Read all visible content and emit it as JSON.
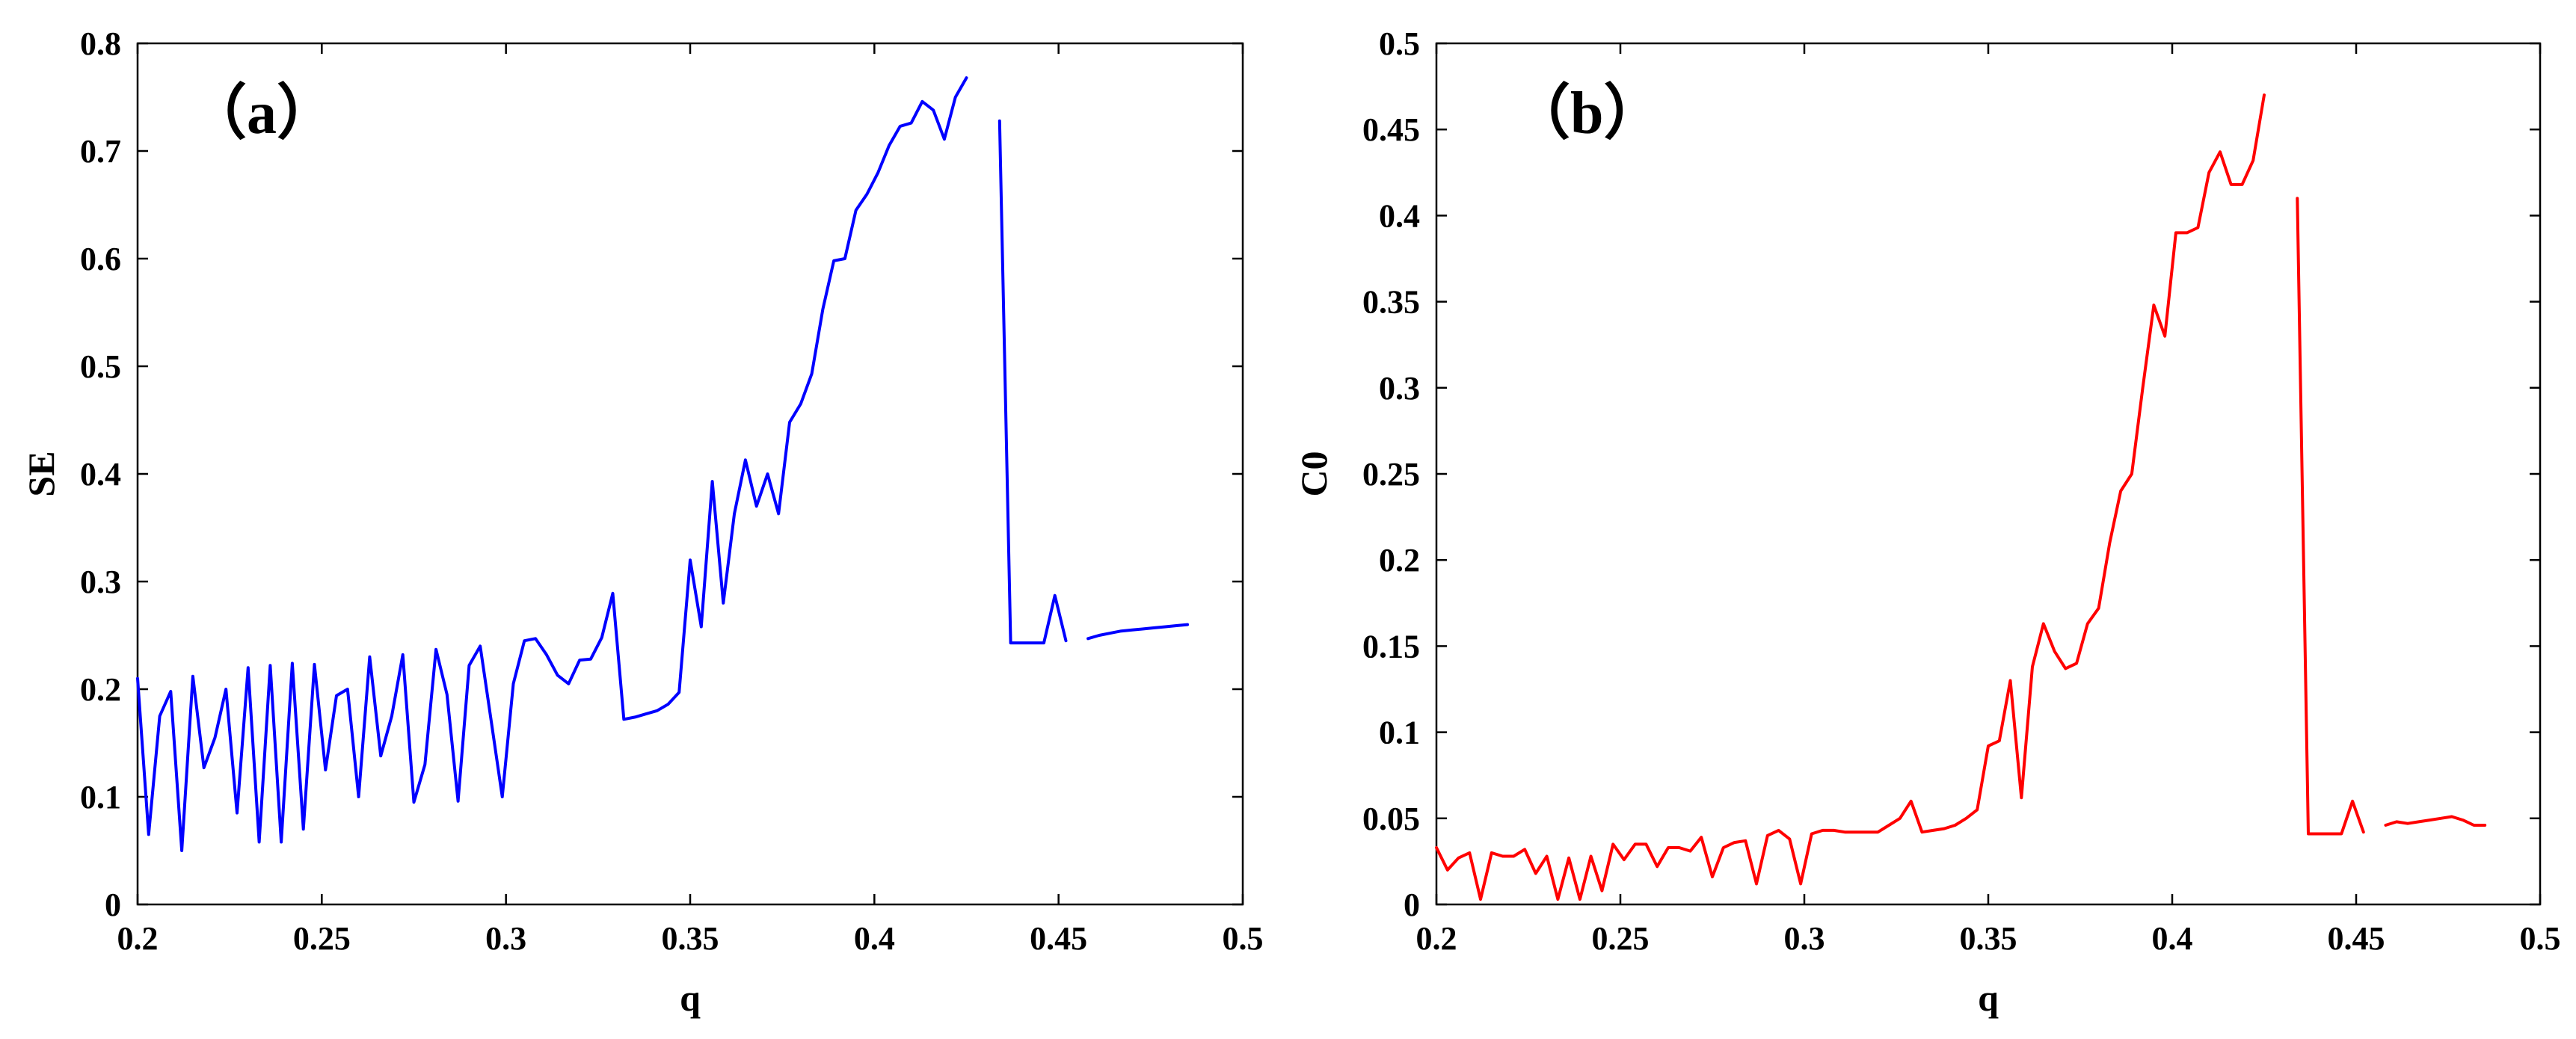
{
  "chart_data": [
    {
      "type": "line",
      "panel_label": "（a）",
      "xlabel": "q",
      "ylabel": "SE",
      "xlim": [
        0.2,
        0.5
      ],
      "ylim": [
        0,
        0.8
      ],
      "xticks": [
        "0.2",
        "0.25",
        "0.3",
        "0.35",
        "0.4",
        "0.45",
        "0.5"
      ],
      "yticks": [
        "0",
        "0.1",
        "0.2",
        "0.3",
        "0.4",
        "0.5",
        "0.6",
        "0.7",
        "0.8"
      ],
      "grid": false,
      "color": "#0000ff",
      "segments": [
        {
          "x": [
            0.2,
            0.203,
            0.206,
            0.209,
            0.212,
            0.215,
            0.218,
            0.221,
            0.224,
            0.227,
            0.23,
            0.233,
            0.236,
            0.239,
            0.242,
            0.245,
            0.248,
            0.251,
            0.254,
            0.257,
            0.26,
            0.263,
            0.266,
            0.269,
            0.272,
            0.275,
            0.278,
            0.281,
            0.284,
            0.287,
            0.29,
            0.293,
            0.296,
            0.299,
            0.302,
            0.305,
            0.308,
            0.311,
            0.314,
            0.317,
            0.32,
            0.323,
            0.326,
            0.329,
            0.332,
            0.335,
            0.338,
            0.341,
            0.344,
            0.347,
            0.35,
            0.353,
            0.356,
            0.359,
            0.362,
            0.365,
            0.368,
            0.371,
            0.374,
            0.377,
            0.38,
            0.383,
            0.386,
            0.389,
            0.392,
            0.395,
            0.398,
            0.401,
            0.404,
            0.407,
            0.41,
            0.413,
            0.416,
            0.419,
            0.422,
            0.425
          ],
          "y": [
            0.21,
            0.065,
            0.175,
            0.198,
            0.05,
            0.212,
            0.127,
            0.155,
            0.2,
            0.085,
            0.22,
            0.058,
            0.222,
            0.058,
            0.224,
            0.07,
            0.223,
            0.125,
            0.194,
            0.2,
            0.1,
            0.23,
            0.138,
            0.175,
            0.232,
            0.095,
            0.13,
            0.237,
            0.195,
            0.096,
            0.222,
            0.24,
            0.17,
            0.1,
            0.205,
            0.245,
            0.247,
            0.232,
            0.213,
            0.205,
            0.227,
            0.228,
            0.248,
            0.289,
            0.172,
            0.174,
            0.177,
            0.18,
            0.186,
            0.197,
            0.32,
            0.258,
            0.393,
            0.28,
            0.363,
            0.413,
            0.37,
            0.4,
            0.363,
            0.448,
            0.465,
            0.493,
            0.553,
            0.598,
            0.6,
            0.645,
            0.66,
            0.68,
            0.705,
            0.723,
            0.726,
            0.746,
            0.738,
            0.711,
            0.75,
            0.768
          ]
        },
        {
          "x": [
            0.434,
            0.437,
            0.44,
            0.443,
            0.446,
            0.449,
            0.452
          ],
          "y": [
            0.728,
            0.243,
            0.243,
            0.243,
            0.243,
            0.287,
            0.245
          ]
        },
        {
          "x": [
            0.458,
            0.461,
            0.464,
            0.467,
            0.47,
            0.473,
            0.476,
            0.479,
            0.482,
            0.485
          ],
          "y": [
            0.247,
            0.25,
            0.252,
            0.254,
            0.255,
            0.256,
            0.257,
            0.258,
            0.259,
            0.26
          ]
        }
      ]
    },
    {
      "type": "line",
      "panel_label": "（b）",
      "xlabel": "q",
      "ylabel": "C0",
      "xlim": [
        0.2,
        0.5
      ],
      "ylim": [
        0,
        0.5
      ],
      "xticks": [
        "0.2",
        "0.25",
        "0.3",
        "0.35",
        "0.4",
        "0.45",
        "0.5"
      ],
      "yticks": [
        "0",
        "0.05",
        "0.1",
        "0.15",
        "0.2",
        "0.25",
        "0.3",
        "0.35",
        "0.4",
        "0.45",
        "0.5"
      ],
      "grid": false,
      "color": "#ff0000",
      "segments": [
        {
          "x": [
            0.2,
            0.203,
            0.206,
            0.209,
            0.212,
            0.215,
            0.218,
            0.221,
            0.224,
            0.227,
            0.23,
            0.233,
            0.236,
            0.239,
            0.242,
            0.245,
            0.248,
            0.251,
            0.254,
            0.257,
            0.26,
            0.263,
            0.266,
            0.269,
            0.272,
            0.275,
            0.278,
            0.281,
            0.284,
            0.287,
            0.29,
            0.293,
            0.296,
            0.299,
            0.302,
            0.305,
            0.308,
            0.311,
            0.314,
            0.317,
            0.32,
            0.323,
            0.326,
            0.329,
            0.332,
            0.335,
            0.338,
            0.341,
            0.344,
            0.347,
            0.35,
            0.353,
            0.356,
            0.359,
            0.362,
            0.365,
            0.368,
            0.371,
            0.374,
            0.377,
            0.38,
            0.383,
            0.386,
            0.389,
            0.392,
            0.395,
            0.398,
            0.401,
            0.404,
            0.407,
            0.41,
            0.413,
            0.416,
            0.419,
            0.422,
            0.425
          ],
          "y": [
            0.033,
            0.02,
            0.027,
            0.03,
            0.003,
            0.03,
            0.028,
            0.028,
            0.032,
            0.018,
            0.028,
            0.003,
            0.027,
            0.003,
            0.028,
            0.008,
            0.035,
            0.026,
            0.035,
            0.035,
            0.022,
            0.033,
            0.033,
            0.031,
            0.039,
            0.016,
            0.033,
            0.036,
            0.037,
            0.012,
            0.04,
            0.043,
            0.038,
            0.012,
            0.041,
            0.043,
            0.043,
            0.042,
            0.042,
            0.042,
            0.042,
            0.046,
            0.05,
            0.06,
            0.042,
            0.043,
            0.044,
            0.046,
            0.05,
            0.055,
            0.092,
            0.095,
            0.13,
            0.062,
            0.138,
            0.163,
            0.147,
            0.137,
            0.14,
            0.163,
            0.172,
            0.21,
            0.24,
            0.25,
            0.3,
            0.348,
            0.33,
            0.39,
            0.39,
            0.393,
            0.425,
            0.437,
            0.418,
            0.418,
            0.432,
            0.47
          ]
        },
        {
          "x": [
            0.434,
            0.437,
            0.44,
            0.443,
            0.446,
            0.449,
            0.452
          ],
          "y": [
            0.41,
            0.041,
            0.041,
            0.041,
            0.041,
            0.06,
            0.042
          ]
        },
        {
          "x": [
            0.458,
            0.461,
            0.464,
            0.467,
            0.47,
            0.473,
            0.476,
            0.479,
            0.482,
            0.485
          ],
          "y": [
            0.046,
            0.048,
            0.047,
            0.048,
            0.049,
            0.05,
            0.051,
            0.049,
            0.046,
            0.046
          ]
        }
      ]
    }
  ]
}
